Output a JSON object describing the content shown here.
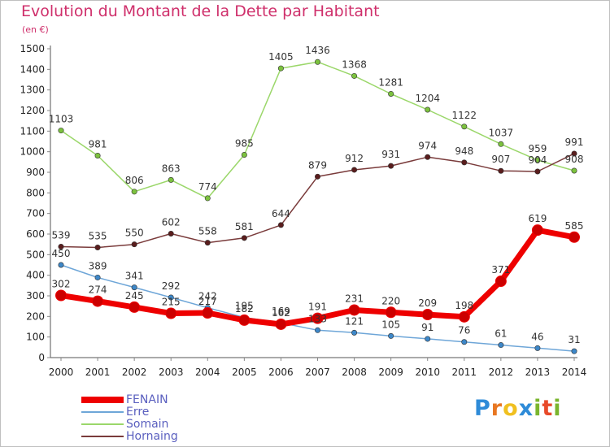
{
  "header": {
    "title": "Evolution du Montant de la Dette par Habitant",
    "unit": "(en €)"
  },
  "logo": {
    "letters": [
      "P",
      "r",
      "o",
      "x",
      "i",
      "t",
      "i"
    ],
    "colors": [
      "#2e8bd8",
      "#e87722",
      "#f0c020",
      "#2e8bd8",
      "#7ab52e",
      "#e84a2a",
      "#7ab52e"
    ]
  },
  "chart_data": {
    "type": "line",
    "title": "Evolution du Montant de la Dette par Habitant",
    "ylabel": "(en €)",
    "xlabel": "",
    "x": [
      "2000",
      "2001",
      "2002",
      "2003",
      "2004",
      "2005",
      "2006",
      "2007",
      "2008",
      "2009",
      "2010",
      "2011",
      "2012",
      "2013",
      "2014"
    ],
    "ylim": [
      0,
      1500
    ],
    "yticks": [
      0,
      100,
      200,
      300,
      400,
      500,
      600,
      700,
      800,
      900,
      1000,
      1100,
      1200,
      1300,
      1400,
      1500
    ],
    "grid": false,
    "legend_position": "bottom-left",
    "series": [
      {
        "name": "FENAIN",
        "color": "#ee0000",
        "marker_color": "#cc0000",
        "emphasis": true,
        "values": [
          302,
          274,
          245,
          215,
          217,
          182,
          162,
          191,
          231,
          220,
          209,
          198,
          371,
          619,
          585
        ]
      },
      {
        "name": "Erre",
        "color": "#6ea6d8",
        "marker_color": "#3d87c8",
        "emphasis": false,
        "values": [
          450,
          389,
          341,
          292,
          242,
          195,
          169,
          133,
          121,
          105,
          91,
          76,
          61,
          46,
          31
        ]
      },
      {
        "name": "Somain",
        "color": "#9bd76a",
        "marker_color": "#7cc23e",
        "emphasis": false,
        "values": [
          1103,
          981,
          806,
          863,
          774,
          985,
          1405,
          1436,
          1368,
          1281,
          1204,
          1122,
          1037,
          959,
          908
        ]
      },
      {
        "name": "Hornaing",
        "color": "#7a3b3b",
        "marker_color": "#5a1d1d",
        "emphasis": false,
        "values": [
          539,
          535,
          550,
          602,
          558,
          581,
          644,
          879,
          912,
          931,
          974,
          948,
          907,
          904,
          991
        ]
      }
    ]
  }
}
